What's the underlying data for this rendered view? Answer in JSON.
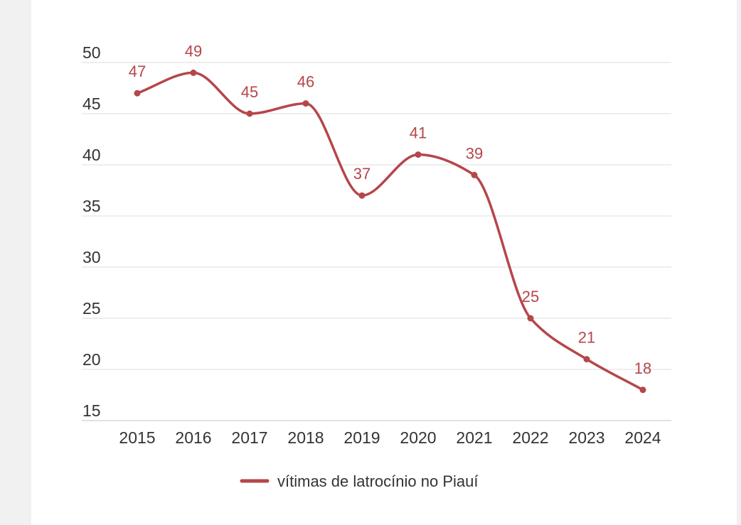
{
  "colors": {
    "series": "#b5464a",
    "grid": "#e3e3e3",
    "tick": "#333333",
    "card": "#ffffff",
    "background": "#f1f1f1"
  },
  "chart_data": {
    "type": "line",
    "title": "",
    "xlabel": "",
    "ylabel": "",
    "x": [
      "2015",
      "2016",
      "2017",
      "2018",
      "2019",
      "2020",
      "2021",
      "2022",
      "2023",
      "2024"
    ],
    "series": [
      {
        "name": "vítimas de latrocínio no Piauí",
        "values": [
          47,
          49,
          45,
          46,
          37,
          41,
          39,
          25,
          21,
          18
        ]
      }
    ],
    "ylim": [
      15,
      50
    ],
    "yticks": [
      50,
      45,
      40,
      35,
      30,
      25,
      20,
      15
    ],
    "grid": true,
    "legend": "bottom-center"
  }
}
